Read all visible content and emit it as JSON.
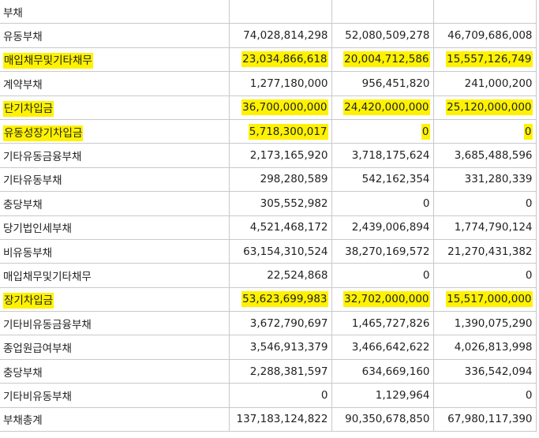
{
  "table": {
    "rows": [
      {
        "label": "부채",
        "level": 0,
        "hl": false,
        "values": [
          "",
          "",
          ""
        ]
      },
      {
        "label": "유동부채",
        "level": 1,
        "hl": false,
        "values": [
          "74,028,814,298",
          "52,080,509,278",
          "46,709,686,008"
        ]
      },
      {
        "label": "매입채무및기타채무",
        "level": 2,
        "hl": true,
        "values": [
          "23,034,866,618",
          "20,004,712,586",
          "15,557,126,749"
        ]
      },
      {
        "label": "계약부채",
        "level": 2,
        "hl": false,
        "values": [
          "1,277,180,000",
          "956,451,820",
          "241,000,200"
        ]
      },
      {
        "label": "단기차입금",
        "level": 2,
        "hl": true,
        "values": [
          "36,700,000,000",
          "24,420,000,000",
          "25,120,000,000"
        ]
      },
      {
        "label": "유동성장기차입금",
        "level": 2,
        "hl": true,
        "values": [
          "5,718,300,017",
          "0",
          "0"
        ]
      },
      {
        "label": "기타유동금융부채",
        "level": 2,
        "hl": false,
        "values": [
          "2,173,165,920",
          "3,718,175,624",
          "3,685,488,596"
        ]
      },
      {
        "label": "기타유동부채",
        "level": 2,
        "hl": false,
        "values": [
          "298,280,589",
          "542,162,354",
          "331,280,339"
        ]
      },
      {
        "label": "충당부채",
        "level": 2,
        "hl": false,
        "values": [
          "305,552,982",
          "0",
          "0"
        ]
      },
      {
        "label": "당기법인세부채",
        "level": 2,
        "hl": false,
        "values": [
          "4,521,468,172",
          "2,439,006,894",
          "1,774,790,124"
        ]
      },
      {
        "label": "비유동부채",
        "level": 1,
        "hl": false,
        "values": [
          "63,154,310,524",
          "38,270,169,572",
          "21,270,431,382"
        ]
      },
      {
        "label": "매입채무및기타채무",
        "level": 2,
        "hl": false,
        "values": [
          "22,524,868",
          "0",
          "0"
        ]
      },
      {
        "label": "장기차입금",
        "level": 2,
        "hl": true,
        "values": [
          "53,623,699,983",
          "32,702,000,000",
          "15,517,000,000"
        ]
      },
      {
        "label": "기타비유동금융부채",
        "level": 2,
        "hl": false,
        "values": [
          "3,672,790,697",
          "1,465,727,826",
          "1,390,075,290"
        ]
      },
      {
        "label": "종업원급여부채",
        "level": 2,
        "hl": false,
        "values": [
          "3,546,913,379",
          "3,466,642,622",
          "4,026,813,998"
        ]
      },
      {
        "label": "충당부채",
        "level": 2,
        "hl": false,
        "values": [
          "2,288,381,597",
          "634,669,160",
          "336,542,094"
        ]
      },
      {
        "label": "기타비유동부채",
        "level": 2,
        "hl": false,
        "values": [
          "0",
          "1,129,964",
          "0"
        ]
      },
      {
        "label": "부채총계",
        "level": 1,
        "hl": false,
        "values": [
          "137,183,124,822",
          "90,350,678,850",
          "67,980,117,390"
        ]
      }
    ],
    "highlight_color": "#fff200"
  }
}
